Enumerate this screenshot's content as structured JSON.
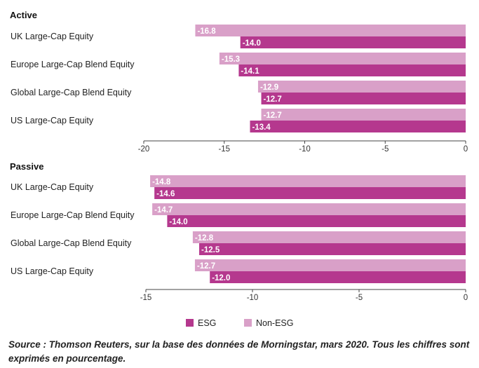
{
  "chart_data": [
    {
      "type": "bar",
      "orientation": "horizontal",
      "title": "Active",
      "categories": [
        "UK Large-Cap Equity",
        "Europe Large-Cap Blend Equity",
        "Global Large-Cap Blend Equity",
        "US Large-Cap Equity"
      ],
      "series": [
        {
          "name": "Non-ESG",
          "values": [
            -16.8,
            -15.3,
            -12.9,
            -12.7
          ],
          "value_labels": [
            "-16.8",
            "-15.3",
            "-12.9",
            "-12.7"
          ]
        },
        {
          "name": "ESG",
          "values": [
            -14.0,
            -14.1,
            -12.7,
            -13.4
          ],
          "value_labels": [
            "-14.0",
            "-14.1",
            "-12.7",
            "-13.4"
          ]
        }
      ],
      "xlim": [
        -20,
        0
      ],
      "xticks": [
        -20,
        -15,
        -10,
        -5,
        0
      ],
      "xtick_labels": [
        "-20",
        "-15",
        "-10",
        "-5",
        "0"
      ]
    },
    {
      "type": "bar",
      "orientation": "horizontal",
      "title": "Passive",
      "categories": [
        "UK Large-Cap Equity",
        "Europe Large-Cap Blend Equity",
        "Global Large-Cap Blend Equity",
        "US Large-Cap Equity"
      ],
      "series": [
        {
          "name": "Non-ESG",
          "values": [
            -14.8,
            -14.7,
            -12.8,
            -12.7
          ],
          "value_labels": [
            "-14.8",
            "-14.7",
            "-12.8",
            "-12.7"
          ]
        },
        {
          "name": "ESG",
          "values": [
            -14.6,
            -14.0,
            -12.5,
            -12.0
          ],
          "value_labels": [
            "-14.6",
            "-14.0",
            "-12.5",
            "-12.0"
          ]
        }
      ],
      "xlim": [
        -15,
        0
      ],
      "xticks": [
        -15,
        -10,
        -5,
        0
      ],
      "xtick_labels": [
        "-15",
        "-10",
        "-5",
        "0"
      ]
    }
  ],
  "legend": {
    "placement": "bottom-center",
    "items": [
      {
        "label": "ESG",
        "color": "#b5388e"
      },
      {
        "label": "Non-ESG",
        "color": "#d9a0c8"
      }
    ]
  },
  "colors": {
    "ESG": "#b5388e",
    "Non-ESG": "#d9a0c8"
  },
  "source": "Source : Thomson Reuters, sur la base des données de Morningstar, mars 2020. Tous les chiffres sont exprimés en pourcentage."
}
